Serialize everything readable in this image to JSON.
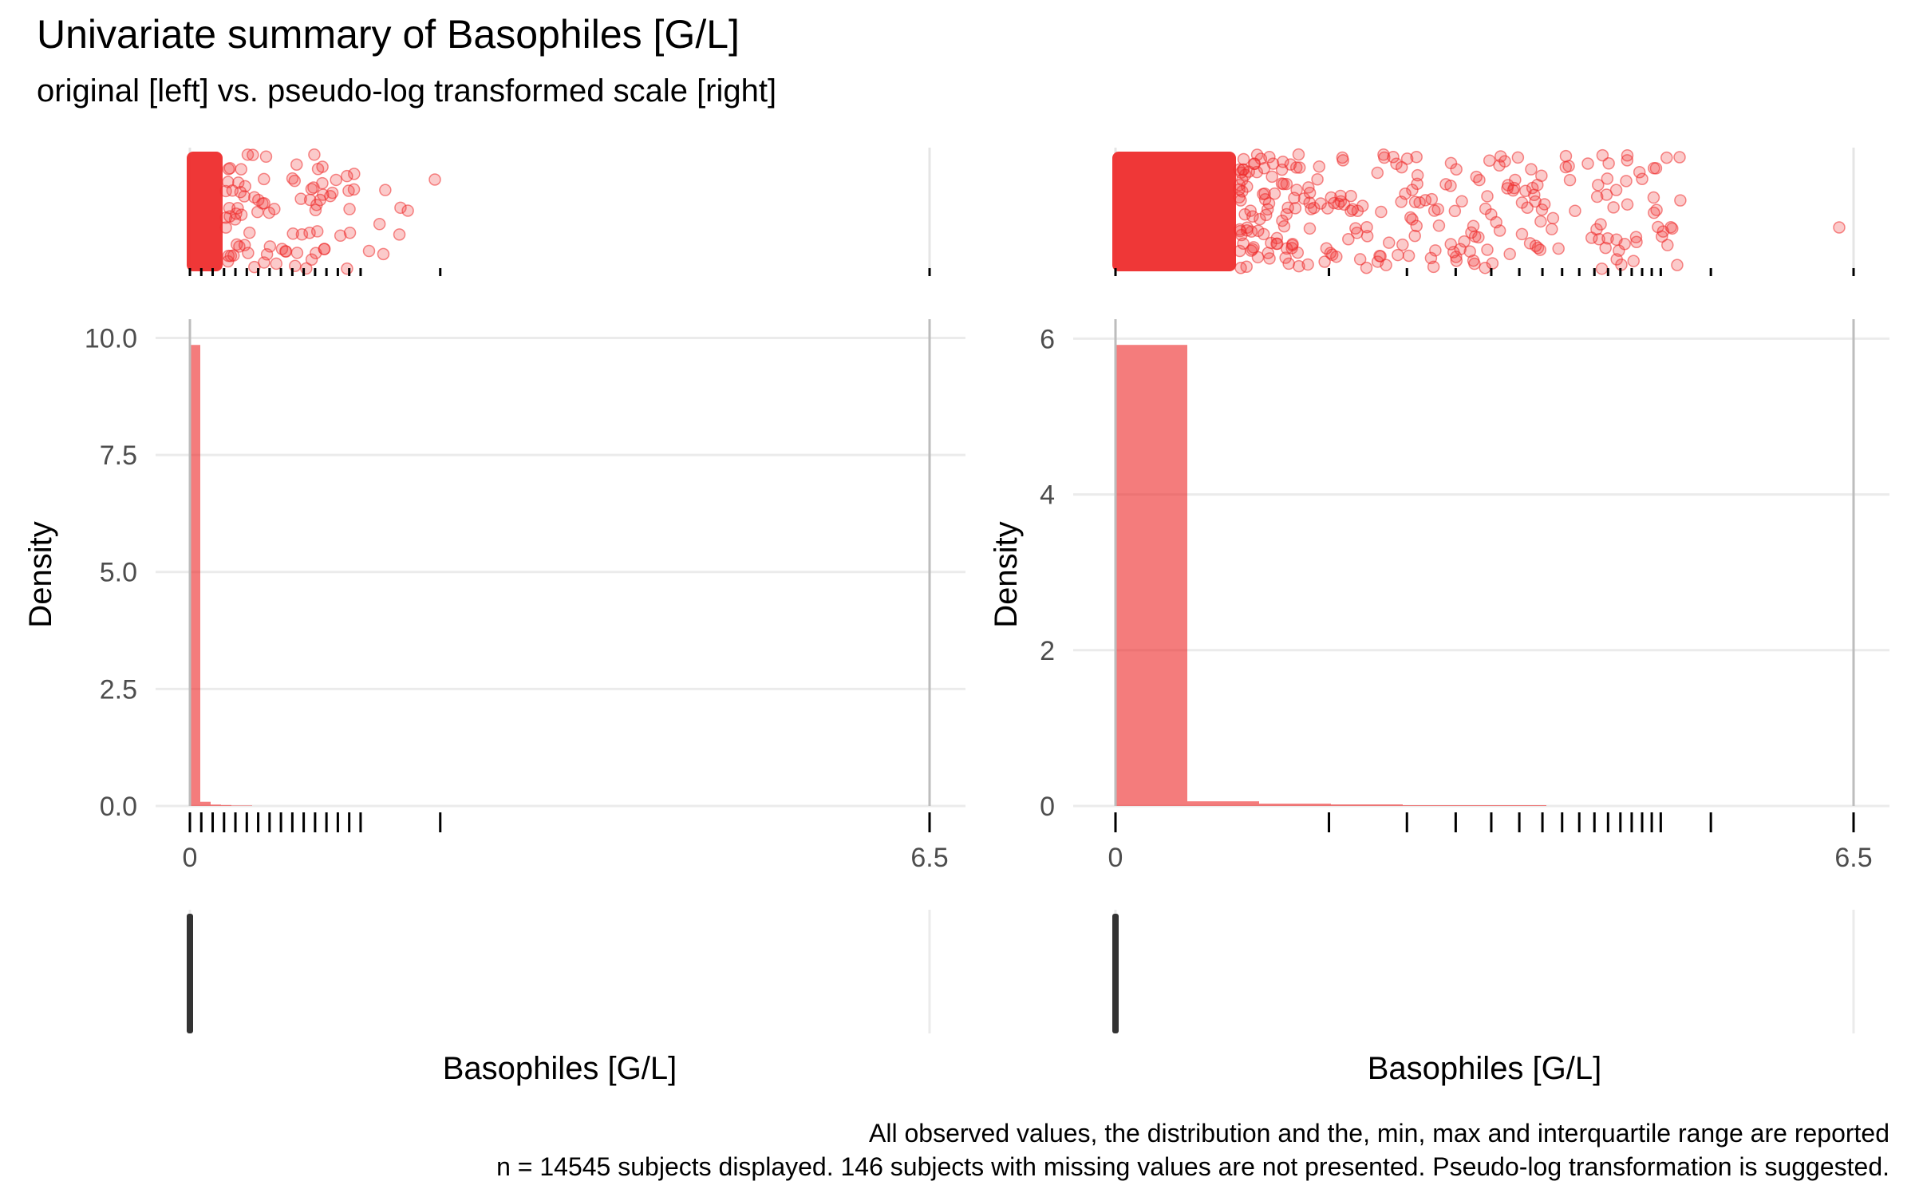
{
  "title": "Univariate summary of Basophiles [G/L]",
  "subtitle": "original [left] vs. pseudo-log transformed scale [right]",
  "caption_line1": "All observed values, the distribution and the, min, max and interquartile range are reported",
  "caption_line2": "n = 14545 subjects displayed. 146 subjects with missing values are not presented. Pseudo-log transformation is suggested.",
  "colors": {
    "fill": "#EE2C2C",
    "boxplot": "#333333",
    "grid": "#EBEBEB",
    "rangeLine": "#BDBDBD"
  },
  "chart_data": [
    {
      "panel": "left",
      "type": "bar",
      "scale": "original",
      "xlabel": "Basophiles [G/L]",
      "ylabel": "Density",
      "xlim": [
        0,
        6.5
      ],
      "ylim": [
        0,
        10.4
      ],
      "x_ticks": [
        "0",
        "6.5"
      ],
      "y_ticks": [
        "0.0",
        "2.5",
        "5.0",
        "7.5",
        "10.0"
      ],
      "bins": [
        {
          "x0": 0.0,
          "x1": 0.1,
          "density": 9.85
        },
        {
          "x0": 0.1,
          "x1": 0.2,
          "density": 0.09
        },
        {
          "x0": 0.2,
          "x1": 0.3,
          "density": 0.03
        },
        {
          "x0": 0.3,
          "x1": 0.4,
          "density": 0.02
        },
        {
          "x0": 0.4,
          "x1": 0.5,
          "density": 0.01
        },
        {
          "x0": 0.5,
          "x1": 0.6,
          "density": 0.01
        }
      ],
      "rug_values": [
        0,
        0.1,
        0.2,
        0.3,
        0.4,
        0.5,
        0.6,
        0.7,
        0.8,
        0.9,
        1.0,
        1.1,
        1.2,
        1.3,
        1.4,
        1.5,
        2.2,
        6.5
      ],
      "min_max": [
        0,
        6.5
      ],
      "iqr": [
        0.0,
        0.05
      ]
    },
    {
      "panel": "right",
      "type": "bar",
      "scale": "pseudo-log",
      "xlabel": "Basophiles [G/L]",
      "ylabel": "Density",
      "xlim": [
        0,
        6.5
      ],
      "ylim": [
        0,
        6.25
      ],
      "x_ticks": [
        "0",
        "6.5"
      ],
      "y_ticks": [
        "0",
        "2",
        "4",
        "6"
      ],
      "bins": [
        {
          "x0": 0.0,
          "x1": 0.1,
          "density": 5.92
        },
        {
          "x0": 0.1,
          "x1": 0.2,
          "density": 0.06
        },
        {
          "x0": 0.2,
          "x1": 0.3,
          "density": 0.03
        },
        {
          "x0": 0.3,
          "x1": 0.4,
          "density": 0.02
        },
        {
          "x0": 0.4,
          "x1": 0.5,
          "density": 0.01
        },
        {
          "x0": 0.5,
          "x1": 0.6,
          "density": 0.01
        }
      ],
      "rug_values": [
        0,
        0.1,
        0.2,
        0.3,
        0.4,
        0.5,
        0.6,
        0.7,
        0.8,
        0.9,
        1.0,
        1.1,
        1.2,
        1.3,
        1.4,
        1.5,
        2.2,
        6.5
      ],
      "min_max": [
        0,
        6.5
      ],
      "iqr": [
        0.0,
        0.05
      ]
    }
  ]
}
